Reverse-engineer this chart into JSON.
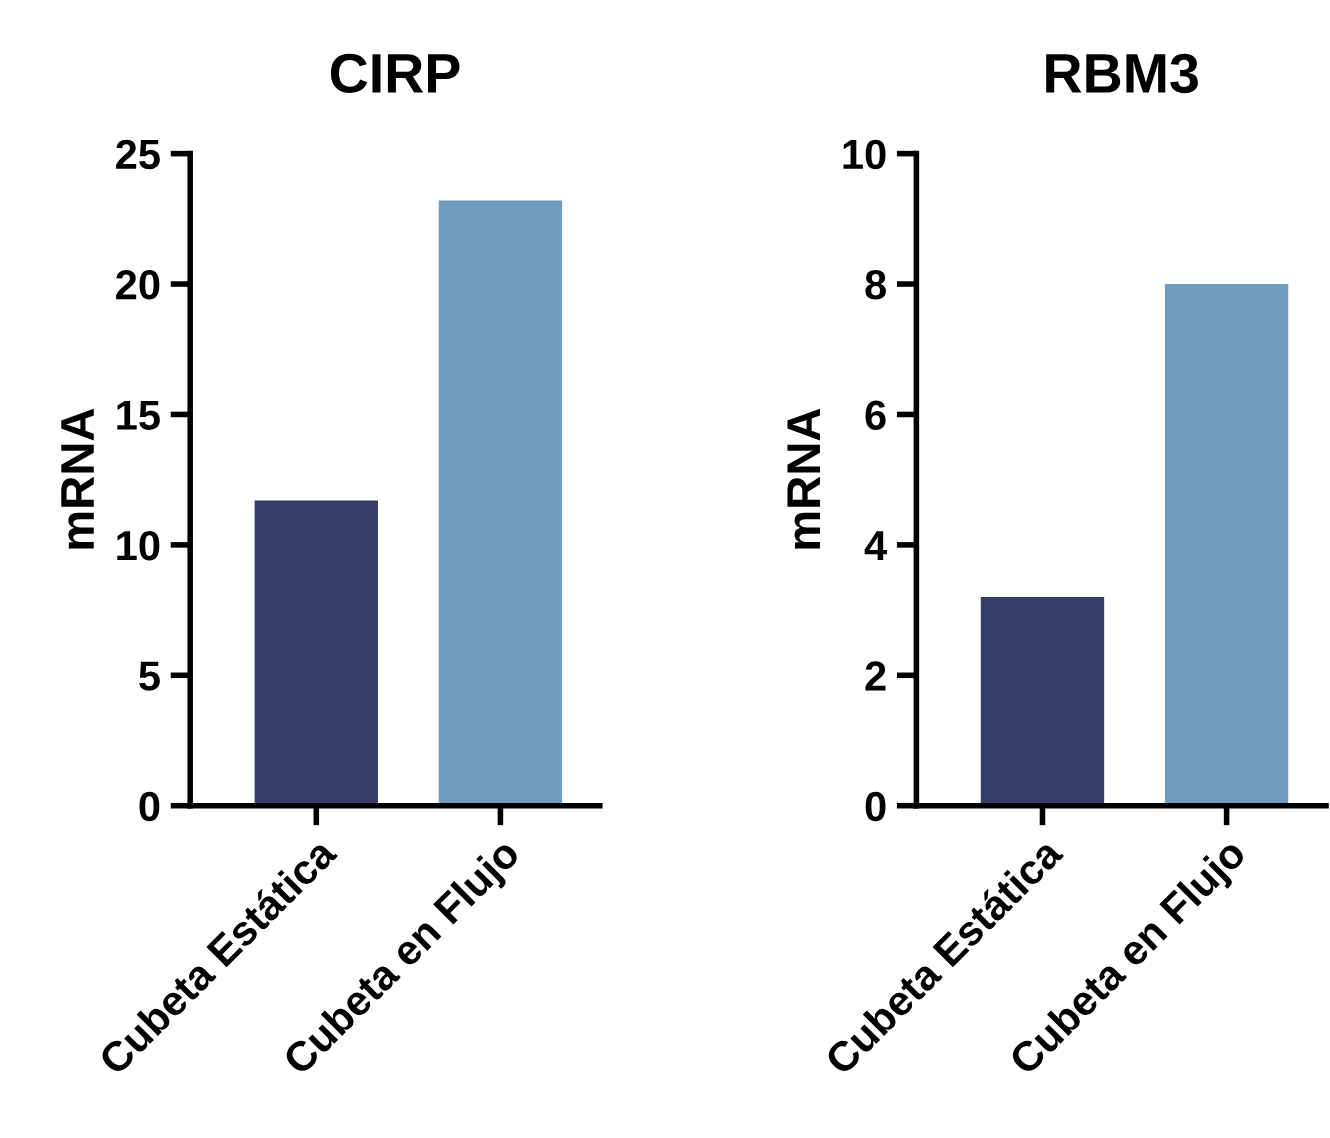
{
  "chart_data": [
    {
      "type": "bar",
      "title": "CIRP",
      "ylabel": "mRNA",
      "categories": [
        "Cubeta Estática",
        "Cubeta en Flujo"
      ],
      "values": [
        11.7,
        23.2
      ],
      "colors": [
        "#343d68",
        "#6f9bbf"
      ],
      "ylim": [
        0,
        25
      ],
      "yticks": [
        0,
        5,
        10,
        15,
        20,
        25
      ],
      "grid": false
    },
    {
      "type": "bar",
      "title": "RBM3",
      "ylabel": "mRNA",
      "categories": [
        "Cubeta Estática",
        "Cubeta en Flujo"
      ],
      "values": [
        3.2,
        8.0
      ],
      "colors": [
        "#343d68",
        "#6f9bbf"
      ],
      "ylim": [
        0,
        10
      ],
      "yticks": [
        0,
        2,
        4,
        6,
        8,
        10
      ],
      "grid": false
    }
  ]
}
